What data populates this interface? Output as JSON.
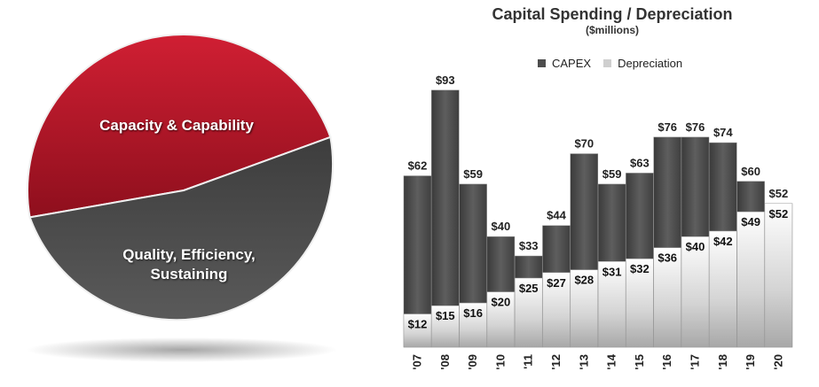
{
  "pie": {
    "slices": [
      {
        "label": "Capacity & Capability",
        "share": 0.42,
        "color": "#c0172a"
      },
      {
        "label": "Quality, Efficiency, Sustaining",
        "line1": "Quality, Efficiency,",
        "line2": "Sustaining",
        "share": 0.58,
        "color": "#4a4a4a"
      }
    ]
  },
  "chart_data": {
    "type": "bar",
    "title": "Capital Spending / Depreciation",
    "subtitle": "($millions)",
    "categories": [
      "'07",
      "'08",
      "'09",
      "'10",
      "'11",
      "'12",
      "'13",
      "'14",
      "'15",
      "'16",
      "'17",
      "'18",
      "'19",
      "'20"
    ],
    "series": [
      {
        "name": "CAPEX",
        "values": [
          62,
          93,
          59,
          40,
          33,
          44,
          70,
          59,
          63,
          76,
          76,
          74,
          60,
          52
        ],
        "labels": [
          "$62",
          "$93",
          "$59",
          "$40",
          "$33",
          "$44",
          "$70",
          "$59",
          "$63",
          "$76",
          "$76",
          "$74",
          "$60",
          "$52"
        ]
      },
      {
        "name": "Depreciation",
        "values": [
          12,
          15,
          16,
          20,
          25,
          27,
          28,
          31,
          32,
          36,
          40,
          42,
          49,
          52
        ],
        "labels": [
          "$12",
          "$15",
          "$16",
          "$20",
          "$25",
          "$27",
          "$28",
          "$31",
          "$32",
          "$36",
          "$40",
          "$42",
          "$49",
          "$52"
        ]
      }
    ],
    "ylim": [
      0,
      100
    ],
    "legend": "top",
    "colors": {
      "capex": "#4d4d4d",
      "depreciation": "#d9d9d9"
    }
  }
}
